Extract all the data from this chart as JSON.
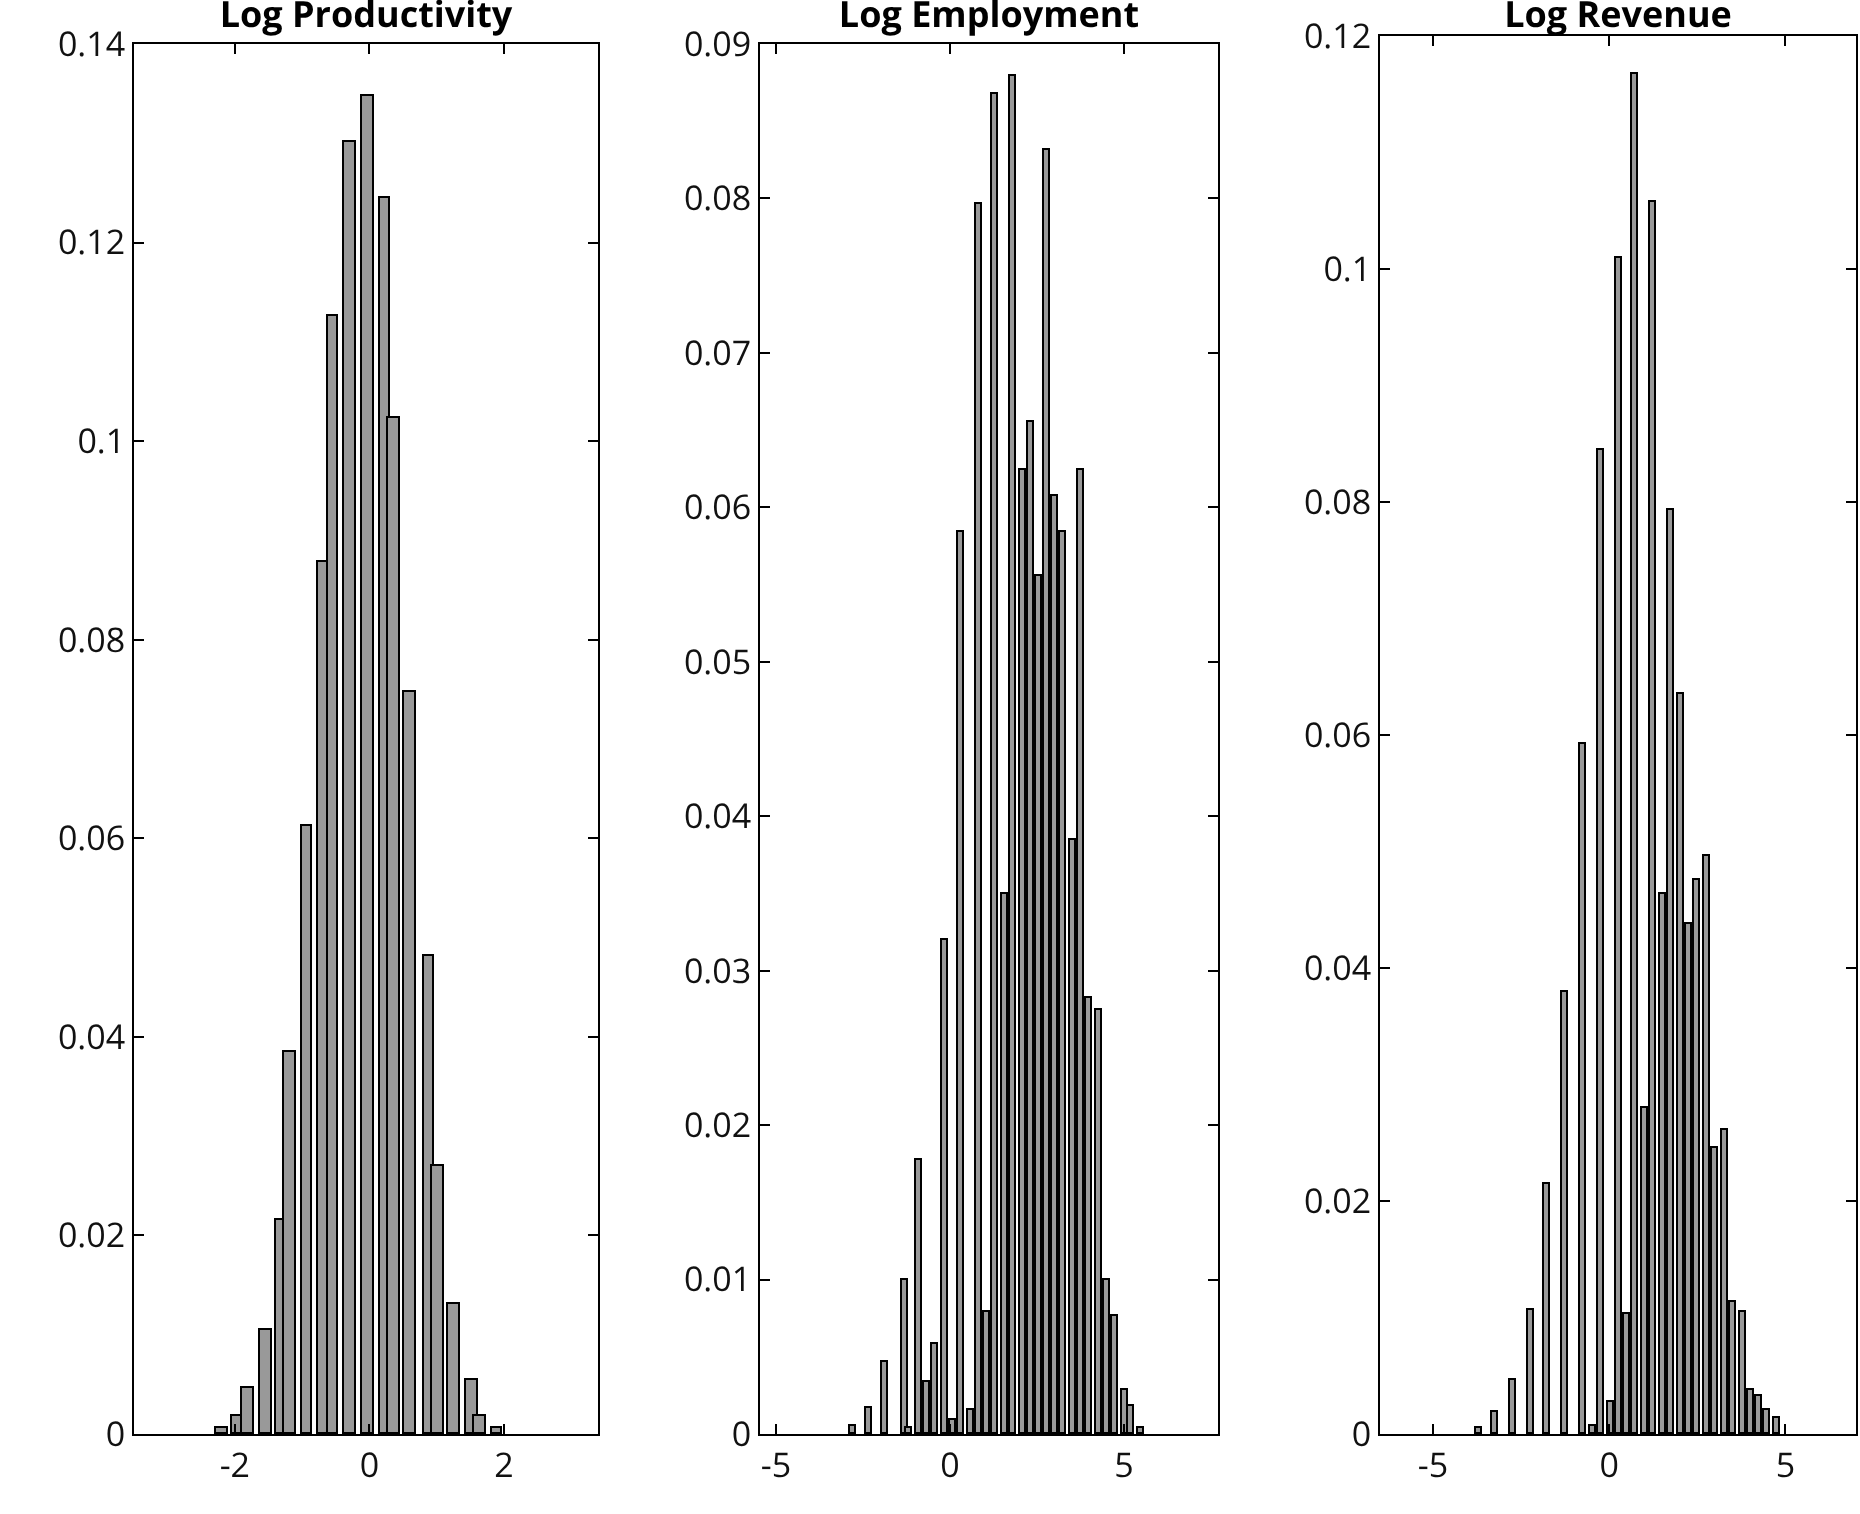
{
  "chart_data": [
    {
      "type": "bar",
      "title": "Log Productivity",
      "x": [
        -2.19,
        -1.97,
        -1.81,
        -1.54,
        -1.31,
        -1.17,
        -0.93,
        -0.69,
        -0.54,
        -0.29,
        -0.03,
        0.23,
        0.37,
        0.6,
        0.89,
        1.03,
        1.26,
        1.53,
        1.64,
        1.9
      ],
      "values": [
        0.0006,
        0.0018,
        0.0047,
        0.0105,
        0.0215,
        0.0384,
        0.0613,
        0.0878,
        0.1127,
        0.1301,
        0.1348,
        0.1244,
        0.1024,
        0.0748,
        0.0482,
        0.027,
        0.0131,
        0.0055,
        0.0018,
        0.0006
      ],
      "color": "#999999",
      "xlim": [
        -3.5,
        3.4
      ],
      "xticks": [
        -2,
        0,
        2
      ],
      "ylim": [
        0,
        0.14
      ],
      "yticks": [
        0,
        0.02,
        0.04,
        0.06,
        0.08,
        0.1,
        0.12,
        0.14
      ],
      "grid": false
    },
    {
      "type": "bar",
      "title": "Log Employment",
      "x": [
        -2.81,
        -2.35,
        -1.86,
        -1.32,
        -1.16,
        -0.89,
        -0.65,
        -0.41,
        -0.14,
        0.11,
        0.32,
        0.59,
        0.84,
        1.08,
        1.3,
        1.57,
        1.81,
        2.08,
        2.32,
        2.54,
        2.78,
        3.03,
        3.27,
        3.51,
        3.76,
        4.0,
        4.27,
        4.51,
        4.76,
        5.0,
        5.22,
        5.49
      ],
      "values": [
        0.0005,
        0.0017,
        0.0046,
        0.01,
        0.0004,
        0.0178,
        0.0034,
        0.0058,
        0.032,
        0.0009,
        0.0584,
        0.0015,
        0.0796,
        0.0079,
        0.0867,
        0.0349,
        0.0879,
        0.0624,
        0.0655,
        0.0556,
        0.0832,
        0.0607,
        0.0584,
        0.0385,
        0.0624,
        0.0282,
        0.0274,
        0.01,
        0.0077,
        0.0029,
        0.0018,
        0.0004
      ],
      "color": "#999999",
      "xlim": [
        -5.46,
        7.7
      ],
      "xticks": [
        -5,
        0,
        5
      ],
      "ylim": [
        0,
        0.09
      ],
      "yticks": [
        0,
        0.01,
        0.02,
        0.03,
        0.04,
        0.05,
        0.06,
        0.07,
        0.08,
        0.09
      ],
      "grid": false
    },
    {
      "type": "bar",
      "title": "Log Revenue",
      "x": [
        -3.67,
        -3.23,
        -2.71,
        -2.21,
        -1.74,
        -1.24,
        -0.75,
        -0.47,
        -0.25,
        0.03,
        0.28,
        0.52,
        0.75,
        1.02,
        1.27,
        1.52,
        1.77,
        2.02,
        2.27,
        2.51,
        2.76,
        3.01,
        3.26,
        3.51,
        3.78,
        4.01,
        4.25,
        4.5,
        4.75
      ],
      "values": [
        0.0005,
        0.0019,
        0.0047,
        0.0107,
        0.0214,
        0.0379,
        0.0592,
        0.0007,
        0.0845,
        0.0027,
        0.1009,
        0.0103,
        0.1167,
        0.0279,
        0.1058,
        0.0464,
        0.0793,
        0.0635,
        0.0437,
        0.0475,
        0.0497,
        0.0246,
        0.0261,
        0.0114,
        0.0105,
        0.0037,
        0.0032,
        0.002,
        0.0014
      ],
      "color": "#999999",
      "xlim": [
        -6.5,
        7
      ],
      "xticks": [
        -5,
        0,
        5
      ],
      "ylim": [
        0,
        0.12
      ],
      "yticks": [
        0,
        0.02,
        0.04,
        0.06,
        0.08,
        0.1,
        0.12
      ],
      "grid": false
    }
  ]
}
